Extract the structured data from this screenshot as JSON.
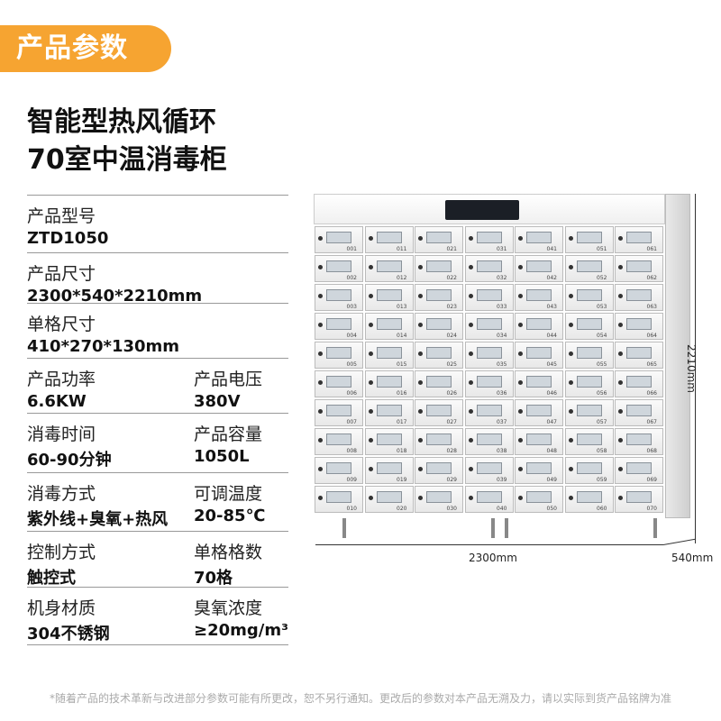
{
  "header": {
    "badge": "产品参数",
    "title_line1": "智能型热风循环",
    "title_line2": "70室中温消毒柜"
  },
  "specs": [
    {
      "label": "产品型号",
      "value": "ZTD1050"
    },
    {
      "label": "产品尺寸",
      "value": "2300*540*2210mm"
    },
    {
      "label": "单格尺寸",
      "value": "410*270*130mm"
    },
    {
      "label": "产品功率",
      "value": "6.6KW",
      "label2": "产品电压",
      "value2": "380V"
    },
    {
      "label": "消毒时间",
      "value": "60-90分钟",
      "label2": "产品容量",
      "value2": "1050L"
    },
    {
      "label": "消毒方式",
      "value": "紫外线+臭氧+热风",
      "label2": "可调温度",
      "value2": "20-85℃"
    },
    {
      "label": "控制方式",
      "value": "触控式",
      "label2": "单格格数",
      "value2": "70格"
    },
    {
      "label": "机身材质",
      "value": "304不锈钢",
      "label2": "臭氧浓度",
      "value2": "≥20mg/m³"
    }
  ],
  "dimensions": {
    "width": "2300mm",
    "depth": "540mm",
    "height": "2210mm"
  },
  "door_labels": [
    "001",
    "002",
    "003",
    "004",
    "005",
    "006",
    "007",
    "008",
    "009",
    "010",
    "011",
    "012",
    "013",
    "014",
    "015",
    "016",
    "017",
    "018",
    "019",
    "020",
    "021",
    "022",
    "023",
    "024",
    "025",
    "026",
    "027",
    "028",
    "029",
    "030",
    "031",
    "032",
    "033",
    "034",
    "035",
    "036",
    "037",
    "038",
    "039",
    "040",
    "041",
    "042",
    "043",
    "044",
    "045",
    "046",
    "047",
    "048",
    "049",
    "050",
    "051",
    "052",
    "053",
    "054",
    "055",
    "056",
    "057",
    "058",
    "059",
    "060",
    "061",
    "062",
    "063",
    "064",
    "065",
    "066",
    "067",
    "068",
    "069",
    "070"
  ],
  "footer": "*随着产品的技术革新与改进部分参数可能有所更改，恕不另行通知。更改后的参数对本产品无溯及力，请以实际到货产品铭牌为准"
}
